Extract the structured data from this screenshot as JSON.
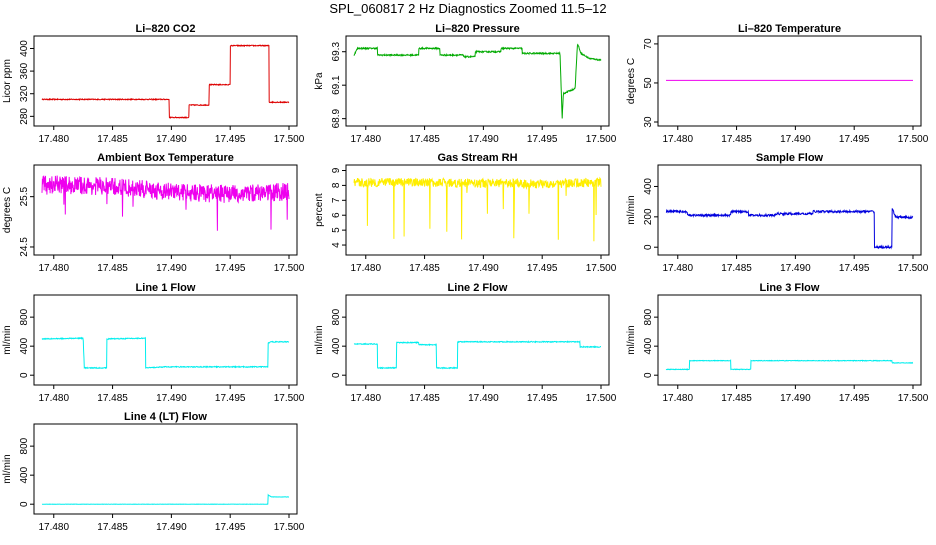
{
  "page": {
    "title": "SPL_060817  2 Hz Diagnostics Zoomed 11.5–12"
  },
  "chart_data": [
    {
      "type": "line",
      "title": "Li–820 CO2",
      "ylabel": "Licor ppm",
      "xlabel": "",
      "xlim": [
        17.479,
        17.5
      ],
      "ylim": [
        270,
        415
      ],
      "xticks": [
        "17.480",
        "17.485",
        "17.490",
        "17.495",
        "17.500"
      ],
      "yticks": [
        280,
        320,
        360,
        400
      ],
      "color": "#dd0000",
      "noise": 0.8,
      "series": [
        {
          "points": [
            [
              17.479,
              310
            ],
            [
              17.4898,
              310
            ],
            [
              17.4898,
              278
            ],
            [
              17.4915,
              278
            ],
            [
              17.4915,
              300
            ],
            [
              17.4932,
              300
            ],
            [
              17.4932,
              336
            ],
            [
              17.495,
              336
            ],
            [
              17.495,
              405
            ],
            [
              17.4983,
              405
            ],
            [
              17.4983,
              305
            ],
            [
              17.5,
              305
            ]
          ]
        }
      ]
    },
    {
      "type": "line",
      "title": "Li–820 Pressure",
      "ylabel": "kPa",
      "xlabel": "",
      "xlim": [
        17.479,
        17.5
      ],
      "ylim": [
        68.88,
        69.37
      ],
      "xticks": [
        "17.480",
        "17.485",
        "17.490",
        "17.495",
        "17.500"
      ],
      "yticks": [
        68.9,
        69.1,
        69.3
      ],
      "color": "#00aa00",
      "noise": 0.004,
      "series": [
        {
          "points": [
            [
              17.479,
              69.28
            ],
            [
              17.4793,
              69.32
            ],
            [
              17.481,
              69.32
            ],
            [
              17.481,
              69.28
            ],
            [
              17.4845,
              69.28
            ],
            [
              17.4845,
              69.32
            ],
            [
              17.4863,
              69.32
            ],
            [
              17.4863,
              69.28
            ],
            [
              17.4883,
              69.28
            ],
            [
              17.4883,
              69.27
            ],
            [
              17.4893,
              69.27
            ],
            [
              17.4893,
              69.3
            ],
            [
              17.4915,
              69.3
            ],
            [
              17.4915,
              69.32
            ],
            [
              17.4933,
              69.32
            ],
            [
              17.4933,
              69.29
            ],
            [
              17.4965,
              69.29
            ],
            [
              17.4965,
              69.32
            ],
            [
              17.4967,
              68.9
            ],
            [
              17.4968,
              69.05
            ],
            [
              17.4978,
              69.08
            ],
            [
              17.498,
              69.35
            ],
            [
              17.4983,
              69.29
            ],
            [
              17.499,
              69.26
            ],
            [
              17.5,
              69.25
            ]
          ]
        }
      ]
    },
    {
      "type": "line",
      "title": "Li–820 Temperature",
      "ylabel": "degrees C",
      "xlabel": "",
      "xlim": [
        17.479,
        17.5
      ],
      "ylim": [
        30,
        72
      ],
      "xticks": [
        "17.480",
        "17.485",
        "17.490",
        "17.495",
        "17.500"
      ],
      "yticks": [
        30,
        50,
        70
      ],
      "color": "#ee00ee",
      "noise": 0,
      "series": [
        {
          "points": [
            [
              17.479,
              51.3
            ],
            [
              17.5,
              51.3
            ]
          ]
        }
      ]
    },
    {
      "type": "line",
      "title": "Ambient Box Temperature",
      "ylabel": "degrees C",
      "xlabel": "",
      "xlim": [
        17.479,
        17.5
      ],
      "ylim": [
        24.42,
        26.05
      ],
      "xticks": [
        "17.480",
        "17.485",
        "17.490",
        "17.495",
        "17.500"
      ],
      "yticks": [
        24.5,
        25.5
      ],
      "color": "#ee00ee",
      "noise": 0.18,
      "series": [
        {
          "points": [
            [
              17.479,
              25.75
            ],
            [
              17.485,
              25.7
            ],
            [
              17.49,
              25.6
            ],
            [
              17.495,
              25.55
            ],
            [
              17.5,
              25.6
            ]
          ]
        }
      ]
    },
    {
      "type": "line",
      "title": "Gas Stream RH",
      "ylabel": "percent",
      "xlabel": "",
      "xlim": [
        17.479,
        17.5
      ],
      "ylim": [
        3.6,
        9.1
      ],
      "xticks": [
        "17.480",
        "17.485",
        "17.490",
        "17.495",
        "17.500"
      ],
      "yticks": [
        4,
        5,
        6,
        7,
        8,
        9
      ],
      "color": "#ffee00",
      "noise": 0.3,
      "series": [
        {
          "points": [
            [
              17.479,
              8.2
            ],
            [
              17.485,
              8.2
            ],
            [
              17.49,
              8.15
            ],
            [
              17.495,
              8.1
            ],
            [
              17.5,
              8.2
            ]
          ]
        }
      ]
    },
    {
      "type": "line",
      "title": "Sample Flow",
      "ylabel": "ml/min",
      "xlabel": "",
      "xlim": [
        17.479,
        17.5
      ],
      "ylim": [
        -25,
        515
      ],
      "xticks": [
        "17.480",
        "17.485",
        "17.490",
        "17.495",
        "17.500"
      ],
      "yticks": [
        0,
        200,
        400
      ],
      "color": "#0000dd",
      "noise": 7,
      "series": [
        {
          "points": [
            [
              17.479,
              235
            ],
            [
              17.4808,
              235
            ],
            [
              17.4808,
              210
            ],
            [
              17.4845,
              210
            ],
            [
              17.4845,
              235
            ],
            [
              17.486,
              235
            ],
            [
              17.486,
              210
            ],
            [
              17.4883,
              210
            ],
            [
              17.4883,
              220
            ],
            [
              17.4915,
              220
            ],
            [
              17.4915,
              235
            ],
            [
              17.4967,
              235
            ],
            [
              17.4967,
              0
            ],
            [
              17.4982,
              0
            ],
            [
              17.4982,
              260
            ],
            [
              17.4985,
              200
            ],
            [
              17.5,
              195
            ]
          ]
        }
      ]
    },
    {
      "type": "line",
      "title": "Line 1 Flow",
      "ylabel": "ml/min",
      "xlabel": "",
      "xlim": [
        17.479,
        17.5
      ],
      "ylim": [
        -80,
        1050
      ],
      "xticks": [
        "17.480",
        "17.485",
        "17.490",
        "17.495",
        "17.500"
      ],
      "yticks": [
        0,
        400,
        800
      ],
      "color": "#00eeee",
      "noise": 6,
      "series": [
        {
          "points": [
            [
              17.479,
              500
            ],
            [
              17.4825,
              510
            ],
            [
              17.4826,
              100
            ],
            [
              17.4845,
              100
            ],
            [
              17.4845,
              500
            ],
            [
              17.4878,
              510
            ],
            [
              17.4878,
              100
            ],
            [
              17.4895,
              115
            ],
            [
              17.4982,
              115
            ],
            [
              17.4982,
              440
            ],
            [
              17.4985,
              460
            ],
            [
              17.5,
              460
            ]
          ]
        }
      ]
    },
    {
      "type": "line",
      "title": "Line 2 Flow",
      "ylabel": "ml/min",
      "xlabel": "",
      "xlim": [
        17.479,
        17.5
      ],
      "ylim": [
        -80,
        1050
      ],
      "xticks": [
        "17.480",
        "17.485",
        "17.490",
        "17.495",
        "17.500"
      ],
      "yticks": [
        0,
        400,
        800
      ],
      "color": "#00eeee",
      "noise": 6,
      "series": [
        {
          "points": [
            [
              17.479,
              430
            ],
            [
              17.481,
              430
            ],
            [
              17.481,
              100
            ],
            [
              17.4826,
              100
            ],
            [
              17.4826,
              450
            ],
            [
              17.4845,
              450
            ],
            [
              17.4845,
              420
            ],
            [
              17.486,
              420
            ],
            [
              17.486,
              100
            ],
            [
              17.4878,
              100
            ],
            [
              17.4878,
              460
            ],
            [
              17.4982,
              460
            ],
            [
              17.4982,
              390
            ],
            [
              17.5,
              390
            ]
          ]
        }
      ]
    },
    {
      "type": "line",
      "title": "Line 3 Flow",
      "ylabel": "ml/min",
      "xlabel": "",
      "xlim": [
        17.479,
        17.5
      ],
      "ylim": [
        -80,
        1050
      ],
      "xticks": [
        "17.480",
        "17.485",
        "17.490",
        "17.495",
        "17.500"
      ],
      "yticks": [
        0,
        400,
        800
      ],
      "color": "#00eeee",
      "noise": 4,
      "series": [
        {
          "points": [
            [
              17.479,
              80
            ],
            [
              17.481,
              80
            ],
            [
              17.481,
              200
            ],
            [
              17.4845,
              200
            ],
            [
              17.4845,
              80
            ],
            [
              17.4862,
              80
            ],
            [
              17.4862,
              200
            ],
            [
              17.4982,
              200
            ],
            [
              17.4982,
              170
            ],
            [
              17.5,
              170
            ]
          ]
        }
      ]
    },
    {
      "type": "line",
      "title": "Line 4 (LT) Flow",
      "ylabel": "ml/min",
      "xlabel": "",
      "xlim": [
        17.479,
        17.5
      ],
      "ylim": [
        -80,
        1050
      ],
      "xticks": [
        "17.480",
        "17.485",
        "17.490",
        "17.495",
        "17.500"
      ],
      "yticks": [
        0,
        400,
        800
      ],
      "color": "#00eeee",
      "noise": 2,
      "series": [
        {
          "points": [
            [
              17.479,
              0
            ],
            [
              17.4982,
              0
            ],
            [
              17.4982,
              130
            ],
            [
              17.4985,
              100
            ],
            [
              17.5,
              100
            ]
          ]
        }
      ]
    }
  ]
}
